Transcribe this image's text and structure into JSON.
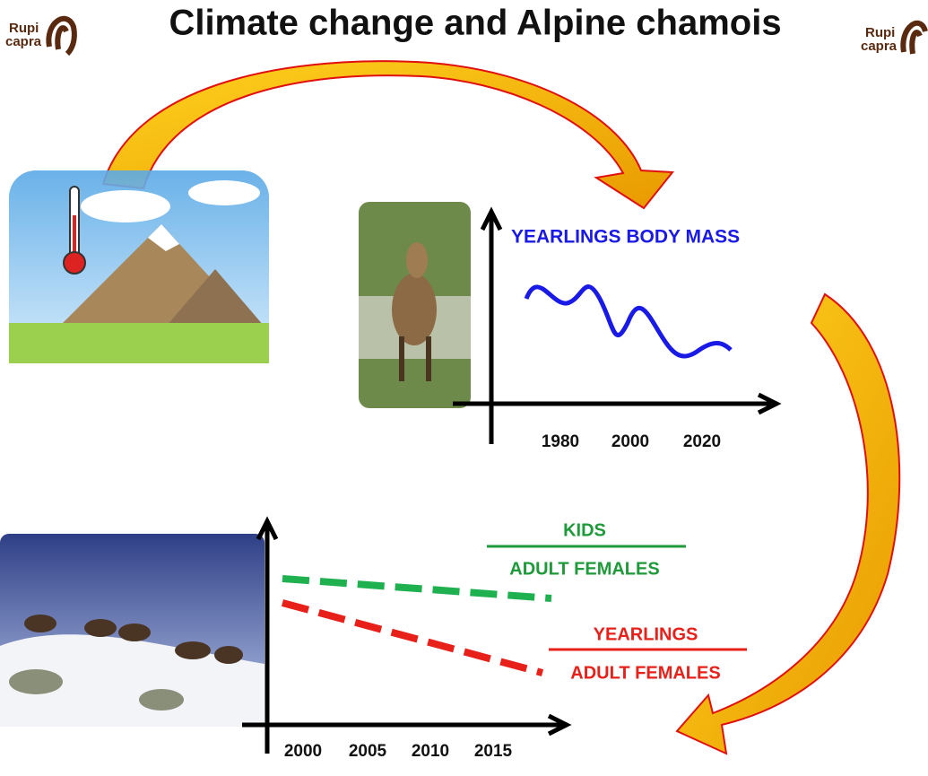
{
  "header": {
    "title": "Climate change and Alpine chamois",
    "logo_left": {
      "line1": "Rupi",
      "line2": "capra"
    },
    "logo_right": {
      "line1": "Rupi",
      "line2": "capra"
    }
  },
  "top_graph": {
    "label": "YEARLINGS BODY MASS",
    "x_labels": [
      "1980",
      "2000",
      "2020"
    ]
  },
  "bottom_graph": {
    "x_labels": [
      "2000",
      "2005",
      "2010",
      "2015"
    ],
    "ratios": [
      {
        "numerator": "KIDS",
        "denominator": "ADULT FEMALES"
      },
      {
        "numerator": "YEARLINGS",
        "denominator": "ADULT FEMALES"
      }
    ]
  }
}
